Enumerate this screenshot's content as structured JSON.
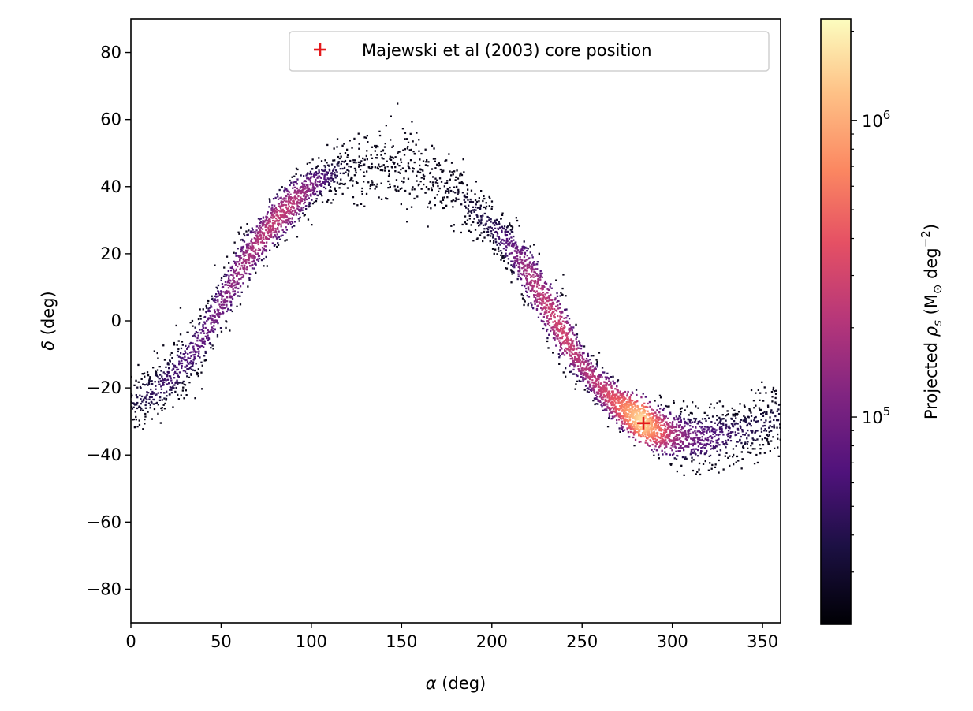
{
  "chart_data": {
    "type": "heatmap",
    "title": "",
    "xlabel_symbol": "α",
    "xlabel_unit": " (deg)",
    "ylabel_symbol": "δ",
    "ylabel_unit": " (deg)",
    "xlim": [
      0,
      360
    ],
    "ylim": [
      -90,
      90
    ],
    "xticks": [
      0,
      50,
      100,
      150,
      200,
      250,
      300,
      350
    ],
    "yticks": [
      -80,
      -60,
      -40,
      -20,
      0,
      20,
      40,
      60,
      80
    ],
    "xtick_labels": [
      "0",
      "50",
      "100",
      "150",
      "200",
      "250",
      "300",
      "350"
    ],
    "ytick_labels": [
      "−80",
      "−60",
      "−40",
      "−20",
      "0",
      "20",
      "40",
      "60",
      "80"
    ],
    "grid": false,
    "colormap": "magma",
    "colorbar": {
      "label_prefix": "Projected ",
      "label_symbol": "ρ",
      "label_symbol_sub": "s",
      "label_unit_open": " (M",
      "label_unit_sun": "⊙",
      "label_unit_mid": " deg",
      "label_unit_exp": "−2",
      "label_unit_close": ")",
      "scale": "log",
      "range": [
        20000,
        2200000
      ],
      "major_ticks": [
        {
          "value": 100000,
          "base": "10",
          "exp": "5"
        },
        {
          "value": 1000000,
          "base": "10",
          "exp": "6"
        }
      ],
      "minor_ticks": [
        30000,
        40000,
        50000,
        60000,
        70000,
        80000,
        90000,
        200000,
        300000,
        400000,
        500000,
        600000,
        700000,
        800000,
        900000,
        2000000
      ]
    },
    "stream_track": [
      {
        "ra": 0,
        "dec": -24,
        "density": 30000,
        "width": 7
      },
      {
        "ra": 10,
        "dec": -22,
        "density": 40000,
        "width": 6
      },
      {
        "ra": 20,
        "dec": -18,
        "density": 50000,
        "width": 6
      },
      {
        "ra": 30,
        "dec": -12,
        "density": 60000,
        "width": 6
      },
      {
        "ra": 40,
        "dec": -5,
        "density": 80000,
        "width": 6
      },
      {
        "ra": 50,
        "dec": 5,
        "density": 110000,
        "width": 6
      },
      {
        "ra": 60,
        "dec": 15,
        "density": 150000,
        "width": 6
      },
      {
        "ra": 70,
        "dec": 23,
        "density": 200000,
        "width": 5
      },
      {
        "ra": 80,
        "dec": 30,
        "density": 250000,
        "width": 5
      },
      {
        "ra": 90,
        "dec": 35,
        "density": 220000,
        "width": 5
      },
      {
        "ra": 100,
        "dec": 40,
        "density": 120000,
        "width": 4
      },
      {
        "ra": 110,
        "dec": 43,
        "density": 50000,
        "width": 4
      },
      {
        "ra": 120,
        "dec": 46,
        "density": 25000,
        "width": 6
      },
      {
        "ra": 140,
        "dec": 48,
        "density": 22000,
        "width": 7
      },
      {
        "ra": 160,
        "dec": 45,
        "density": 22000,
        "width": 7
      },
      {
        "ra": 180,
        "dec": 38,
        "density": 25000,
        "width": 6
      },
      {
        "ra": 200,
        "dec": 28,
        "density": 40000,
        "width": 5
      },
      {
        "ra": 210,
        "dec": 22,
        "density": 80000,
        "width": 5
      },
      {
        "ra": 220,
        "dec": 14,
        "density": 180000,
        "width": 6
      },
      {
        "ra": 230,
        "dec": 5,
        "density": 250000,
        "width": 6
      },
      {
        "ra": 240,
        "dec": -4,
        "density": 300000,
        "width": 6
      },
      {
        "ra": 250,
        "dec": -13,
        "density": 200000,
        "width": 4
      },
      {
        "ra": 260,
        "dec": -20,
        "density": 250000,
        "width": 4
      },
      {
        "ra": 270,
        "dec": -25,
        "density": 500000,
        "width": 4
      },
      {
        "ra": 280,
        "dec": -29,
        "density": 1500000,
        "width": 4
      },
      {
        "ra": 284,
        "dec": -30,
        "density": 2000000,
        "width": 4
      },
      {
        "ra": 290,
        "dec": -32,
        "density": 800000,
        "width": 4
      },
      {
        "ra": 300,
        "dec": -34,
        "density": 200000,
        "width": 5
      },
      {
        "ra": 310,
        "dec": -35,
        "density": 100000,
        "width": 5
      },
      {
        "ra": 320,
        "dec": -35,
        "density": 70000,
        "width": 6
      },
      {
        "ra": 330,
        "dec": -34,
        "density": 50000,
        "width": 6
      },
      {
        "ra": 340,
        "dec": -33,
        "density": 40000,
        "width": 6
      },
      {
        "ra": 350,
        "dec": -31,
        "density": 35000,
        "width": 7
      },
      {
        "ra": 360,
        "dec": -28,
        "density": 30000,
        "width": 7
      }
    ],
    "markers": [
      {
        "name": "Majewski et al (2003) core position",
        "ra": 284,
        "dec": -30.5,
        "symbol": "+",
        "color": "#e41a1c"
      }
    ],
    "legend": {
      "placement": "top-right",
      "entries": [
        {
          "label": "Majewski et al (2003) core position",
          "symbol": "+",
          "color": "#e41a1c"
        }
      ]
    }
  }
}
